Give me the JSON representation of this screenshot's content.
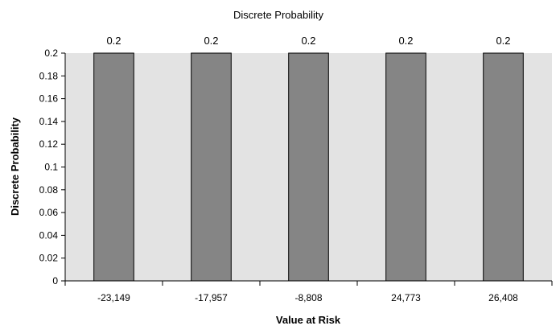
{
  "chart_data": {
    "type": "bar",
    "title": "Discrete Probability",
    "xlabel": "Value at Risk",
    "ylabel": "Discrete Probability",
    "categories": [
      "-23,149",
      "-17,957",
      "-8,808",
      "24,773",
      "26,408"
    ],
    "values": [
      0.2,
      0.2,
      0.2,
      0.2,
      0.2
    ],
    "data_labels": [
      "0.2",
      "0.2",
      "0.2",
      "0.2",
      "0.2"
    ],
    "ylim": [
      0,
      0.2
    ],
    "yticks": [
      "0",
      "0.02",
      "0.04",
      "0.06",
      "0.08",
      "0.1",
      "0.12",
      "0.14",
      "0.16",
      "0.18",
      "0.2"
    ],
    "grid": false,
    "colors": {
      "plot_background": "#e3e3e3",
      "bar_fill": "#858585",
      "bar_stroke": "#000000",
      "axis": "#000000"
    }
  }
}
